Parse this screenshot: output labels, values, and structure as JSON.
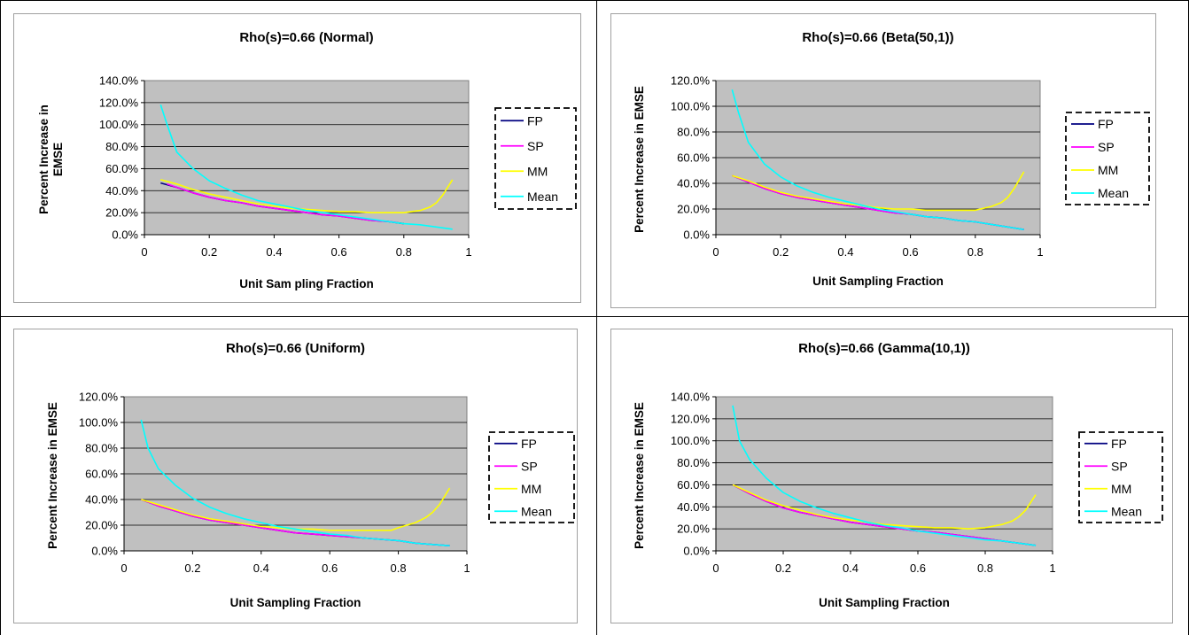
{
  "chart_data": [
    {
      "type": "line",
      "title": "Rho(s)=0.66 (Normal)",
      "xlabel": "Unit Sam pling Fraction",
      "ylabel_lines": [
        "Percent Increase in",
        "EMSE"
      ],
      "xlim": [
        0,
        1
      ],
      "ylim": [
        0,
        1.4
      ],
      "xticks": [
        "0",
        "0.2",
        "0.4",
        "0.6",
        "0.8",
        "1"
      ],
      "yticks": [
        "0.0%",
        "20.0%",
        "40.0%",
        "60.0%",
        "80.0%",
        "100.0%",
        "120.0%",
        "140.0%"
      ],
      "legend_position": "right",
      "grid": true,
      "series": [
        {
          "name": "FP",
          "color": "#000080",
          "x": [
            0.05,
            0.1,
            0.15,
            0.2,
            0.25,
            0.3,
            0.35,
            0.4,
            0.45,
            0.5,
            0.55,
            0.6,
            0.65,
            0.7,
            0.75,
            0.8
          ],
          "y": [
            0.47,
            0.43,
            0.38,
            0.34,
            0.31,
            0.29,
            0.26,
            0.24,
            0.22,
            0.2,
            0.18,
            0.17,
            0.15,
            0.13,
            0.12,
            0.1
          ]
        },
        {
          "name": "SP",
          "color": "#ff00ff",
          "x": [
            0.07,
            0.1,
            0.15,
            0.2,
            0.25,
            0.3,
            0.35,
            0.4,
            0.45,
            0.5,
            0.55,
            0.6,
            0.65,
            0.7,
            0.75,
            0.78
          ],
          "y": [
            0.46,
            0.43,
            0.38,
            0.34,
            0.31,
            0.29,
            0.26,
            0.24,
            0.22,
            0.2,
            0.18,
            0.17,
            0.15,
            0.13,
            0.12,
            0.11
          ]
        },
        {
          "name": "MM",
          "color": "#ffff00",
          "x": [
            0.05,
            0.1,
            0.15,
            0.2,
            0.25,
            0.3,
            0.35,
            0.4,
            0.45,
            0.5,
            0.55,
            0.6,
            0.65,
            0.7,
            0.75,
            0.8,
            0.85,
            0.88,
            0.9,
            0.92,
            0.95
          ],
          "y": [
            0.5,
            0.46,
            0.41,
            0.37,
            0.34,
            0.31,
            0.28,
            0.26,
            0.24,
            0.23,
            0.22,
            0.21,
            0.21,
            0.2,
            0.2,
            0.2,
            0.22,
            0.25,
            0.29,
            0.36,
            0.5
          ]
        },
        {
          "name": "Mean",
          "color": "#00ffff",
          "x": [
            0.05,
            0.07,
            0.1,
            0.15,
            0.2,
            0.25,
            0.3,
            0.35,
            0.4,
            0.45,
            0.5,
            0.55,
            0.6,
            0.65,
            0.7,
            0.75,
            0.8,
            0.85,
            0.9,
            0.95
          ],
          "y": [
            1.18,
            1.0,
            0.75,
            0.6,
            0.49,
            0.42,
            0.36,
            0.31,
            0.28,
            0.25,
            0.22,
            0.2,
            0.18,
            0.16,
            0.14,
            0.12,
            0.1,
            0.09,
            0.07,
            0.05
          ]
        }
      ]
    },
    {
      "type": "line",
      "title": "Rho(s)=0.66 (Beta(50,1))",
      "xlabel": "Unit Sampling Fraction",
      "ylabel_lines": [
        "Percent Increase in EMSE"
      ],
      "xlim": [
        0,
        1
      ],
      "ylim": [
        0,
        1.2
      ],
      "xticks": [
        "0",
        "0.2",
        "0.4",
        "0.6",
        "0.8",
        "1"
      ],
      "yticks": [
        "0.0%",
        "20.0%",
        "40.0%",
        "60.0%",
        "80.0%",
        "100.0%",
        "120.0%"
      ],
      "legend_position": "right",
      "grid": true,
      "series": [
        {
          "name": "FP",
          "color": "#000080",
          "x": [
            0.05,
            0.1,
            0.15,
            0.2,
            0.25,
            0.3,
            0.35,
            0.4,
            0.45,
            0.5,
            0.55,
            0.6,
            0.65,
            0.7,
            0.75,
            0.8,
            0.85,
            0.9,
            0.95
          ],
          "y": [
            0.46,
            0.41,
            0.36,
            0.32,
            0.29,
            0.27,
            0.25,
            0.23,
            0.21,
            0.19,
            0.17,
            0.16,
            0.14,
            0.13,
            0.11,
            0.1,
            0.08,
            0.06,
            0.04
          ]
        },
        {
          "name": "SP",
          "color": "#ff00ff",
          "x": [
            0.05,
            0.1,
            0.15,
            0.2,
            0.25,
            0.3,
            0.35,
            0.4,
            0.45,
            0.5,
            0.55,
            0.6,
            0.65,
            0.7,
            0.75,
            0.8,
            0.85,
            0.9,
            0.95
          ],
          "y": [
            0.46,
            0.41,
            0.36,
            0.32,
            0.29,
            0.27,
            0.25,
            0.23,
            0.21,
            0.19,
            0.17,
            0.16,
            0.14,
            0.13,
            0.11,
            0.1,
            0.08,
            0.06,
            0.04
          ]
        },
        {
          "name": "MM",
          "color": "#ffff00",
          "x": [
            0.05,
            0.1,
            0.15,
            0.2,
            0.25,
            0.3,
            0.35,
            0.4,
            0.45,
            0.5,
            0.55,
            0.6,
            0.65,
            0.7,
            0.75,
            0.8,
            0.85,
            0.88,
            0.9,
            0.92,
            0.95
          ],
          "y": [
            0.46,
            0.42,
            0.37,
            0.33,
            0.3,
            0.28,
            0.26,
            0.24,
            0.23,
            0.21,
            0.2,
            0.2,
            0.19,
            0.19,
            0.19,
            0.19,
            0.22,
            0.25,
            0.29,
            0.36,
            0.49
          ]
        },
        {
          "name": "Mean",
          "color": "#00ffff",
          "x": [
            0.05,
            0.07,
            0.1,
            0.15,
            0.2,
            0.25,
            0.3,
            0.35,
            0.4,
            0.45,
            0.5,
            0.55,
            0.6,
            0.65,
            0.7,
            0.75,
            0.8,
            0.85,
            0.9,
            0.95
          ],
          "y": [
            1.13,
            0.95,
            0.72,
            0.55,
            0.45,
            0.38,
            0.33,
            0.29,
            0.26,
            0.23,
            0.2,
            0.18,
            0.16,
            0.14,
            0.13,
            0.11,
            0.1,
            0.08,
            0.06,
            0.04
          ]
        }
      ]
    },
    {
      "type": "line",
      "title": "Rho(s)=0.66 (Uniform)",
      "xlabel": "Unit Sampling Fraction",
      "ylabel_lines": [
        "Percent Increase in EMSE"
      ],
      "xlim": [
        0,
        1
      ],
      "ylim": [
        0,
        1.2
      ],
      "xticks": [
        "0",
        "0.2",
        "0.4",
        "0.6",
        "0.8",
        "1"
      ],
      "yticks": [
        "0.0%",
        "20.0%",
        "40.0%",
        "60.0%",
        "80.0%",
        "100.0%",
        "120.0%"
      ],
      "legend_position": "right",
      "grid": true,
      "series": [
        {
          "name": "FP",
          "color": "#000080",
          "x": [
            0.05,
            0.1,
            0.15,
            0.2,
            0.25,
            0.3,
            0.35,
            0.4,
            0.45,
            0.5,
            0.55,
            0.6,
            0.65,
            0.7,
            0.75,
            0.8,
            0.85,
            0.9,
            0.95
          ],
          "y": [
            0.4,
            0.35,
            0.31,
            0.27,
            0.24,
            0.22,
            0.2,
            0.18,
            0.16,
            0.14,
            0.13,
            0.12,
            0.11,
            0.1,
            0.09,
            0.08,
            0.06,
            0.05,
            0.04
          ]
        },
        {
          "name": "SP",
          "color": "#ff00ff",
          "x": [
            0.05,
            0.1,
            0.15,
            0.2,
            0.25,
            0.3,
            0.35,
            0.4,
            0.45,
            0.5,
            0.55,
            0.6,
            0.65,
            0.7,
            0.75,
            0.8,
            0.85,
            0.9,
            0.95
          ],
          "y": [
            0.4,
            0.35,
            0.31,
            0.27,
            0.24,
            0.22,
            0.2,
            0.18,
            0.16,
            0.14,
            0.13,
            0.12,
            0.11,
            0.1,
            0.09,
            0.08,
            0.06,
            0.05,
            0.04
          ]
        },
        {
          "name": "MM",
          "color": "#ffff00",
          "x": [
            0.05,
            0.1,
            0.15,
            0.2,
            0.25,
            0.3,
            0.35,
            0.4,
            0.45,
            0.5,
            0.55,
            0.6,
            0.65,
            0.7,
            0.75,
            0.78,
            0.8,
            0.85,
            0.88,
            0.9,
            0.92,
            0.95
          ],
          "y": [
            0.4,
            0.36,
            0.32,
            0.28,
            0.25,
            0.23,
            0.21,
            0.19,
            0.18,
            0.17,
            0.17,
            0.16,
            0.16,
            0.16,
            0.16,
            0.16,
            0.18,
            0.22,
            0.26,
            0.3,
            0.36,
            0.49
          ]
        },
        {
          "name": "Mean",
          "color": "#00ffff",
          "x": [
            0.05,
            0.07,
            0.1,
            0.15,
            0.2,
            0.25,
            0.3,
            0.35,
            0.4,
            0.45,
            0.5,
            0.55,
            0.6,
            0.65,
            0.7,
            0.75,
            0.8,
            0.85,
            0.9,
            0.95
          ],
          "y": [
            1.02,
            0.8,
            0.64,
            0.51,
            0.41,
            0.34,
            0.29,
            0.25,
            0.22,
            0.19,
            0.17,
            0.15,
            0.13,
            0.12,
            0.1,
            0.09,
            0.08,
            0.06,
            0.05,
            0.04
          ]
        }
      ]
    },
    {
      "type": "line",
      "title": "Rho(s)=0.66 (Gamma(10,1))",
      "xlabel": "Unit Sampling Fraction",
      "ylabel_lines": [
        "Percent Increase in EMSE"
      ],
      "xlim": [
        0,
        1
      ],
      "ylim": [
        0,
        1.4
      ],
      "xticks": [
        "0",
        "0.2",
        "0.4",
        "0.6",
        "0.8",
        "1"
      ],
      "yticks": [
        "0.0%",
        "20.0%",
        "40.0%",
        "60.0%",
        "80.0%",
        "100.0%",
        "120.0%",
        "140.0%"
      ],
      "legend_position": "right",
      "grid": true,
      "series": [
        {
          "name": "FP",
          "color": "#000080",
          "x": [
            0.05,
            0.1,
            0.15,
            0.2,
            0.25,
            0.3,
            0.35,
            0.4,
            0.45,
            0.5,
            0.55,
            0.6,
            0.65,
            0.7,
            0.75,
            0.8,
            0.85,
            0.9,
            0.95
          ],
          "y": [
            0.6,
            0.52,
            0.45,
            0.39,
            0.35,
            0.32,
            0.29,
            0.26,
            0.24,
            0.22,
            0.2,
            0.18,
            0.17,
            0.15,
            0.13,
            0.11,
            0.09,
            0.07,
            0.05
          ]
        },
        {
          "name": "SP",
          "color": "#ff00ff",
          "x": [
            0.05,
            0.1,
            0.15,
            0.2,
            0.25,
            0.3,
            0.35,
            0.4,
            0.45,
            0.5,
            0.55,
            0.6,
            0.65,
            0.7,
            0.75,
            0.8,
            0.85,
            0.9,
            0.95
          ],
          "y": [
            0.6,
            0.52,
            0.45,
            0.39,
            0.35,
            0.32,
            0.29,
            0.26,
            0.24,
            0.22,
            0.2,
            0.18,
            0.17,
            0.15,
            0.13,
            0.11,
            0.09,
            0.07,
            0.05
          ]
        },
        {
          "name": "MM",
          "color": "#ffff00",
          "x": [
            0.05,
            0.1,
            0.15,
            0.2,
            0.25,
            0.3,
            0.35,
            0.4,
            0.45,
            0.5,
            0.55,
            0.6,
            0.65,
            0.7,
            0.75,
            0.8,
            0.85,
            0.88,
            0.9,
            0.92,
            0.95
          ],
          "y": [
            0.6,
            0.53,
            0.46,
            0.41,
            0.37,
            0.33,
            0.3,
            0.28,
            0.26,
            0.24,
            0.23,
            0.22,
            0.21,
            0.21,
            0.2,
            0.21,
            0.24,
            0.27,
            0.31,
            0.37,
            0.51
          ]
        },
        {
          "name": "Mean",
          "color": "#00ffff",
          "x": [
            0.05,
            0.07,
            0.1,
            0.15,
            0.2,
            0.25,
            0.3,
            0.35,
            0.4,
            0.45,
            0.5,
            0.55,
            0.6,
            0.65,
            0.7,
            0.75,
            0.8,
            0.85,
            0.9,
            0.95
          ],
          "y": [
            1.32,
            1.0,
            0.83,
            0.66,
            0.53,
            0.45,
            0.39,
            0.34,
            0.3,
            0.26,
            0.23,
            0.21,
            0.18,
            0.16,
            0.14,
            0.12,
            0.1,
            0.09,
            0.07,
            0.05
          ]
        }
      ]
    }
  ]
}
